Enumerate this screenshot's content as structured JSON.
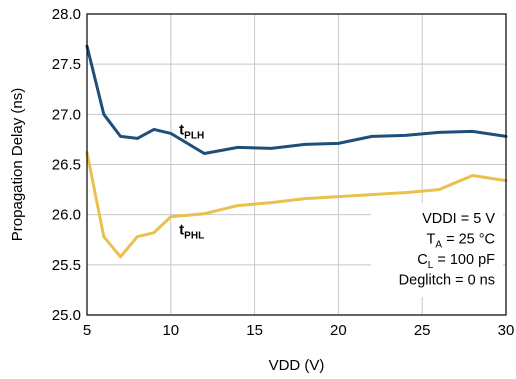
{
  "chart_data": {
    "type": "line",
    "title": "",
    "xlabel": "VDD (V)",
    "ylabel": "Propagation Delay (ns)",
    "xlim": [
      5,
      30
    ],
    "ylim": [
      25.0,
      28.0
    ],
    "x_ticks": [
      5,
      10,
      15,
      20,
      25,
      30
    ],
    "x_tick_labels": [
      "5",
      "10",
      "15",
      "20",
      "25",
      "30"
    ],
    "y_ticks": [
      25.0,
      25.5,
      26.0,
      26.5,
      27.0,
      27.5,
      28.0
    ],
    "y_tick_labels": [
      "25.0",
      "25.5",
      "26.0",
      "26.5",
      "27.0",
      "27.5",
      "28.0"
    ],
    "grid": true,
    "series": [
      {
        "name_main": "t",
        "name_sub": "PLH",
        "color": "#1f4e79",
        "label_at": [
          10.5,
          26.8
        ],
        "x": [
          5,
          6,
          7,
          8,
          9,
          10,
          12,
          14,
          16,
          18,
          20,
          22,
          24,
          26,
          28,
          30
        ],
        "values": [
          27.68,
          27.0,
          26.78,
          26.76,
          26.85,
          26.81,
          26.61,
          26.67,
          26.66,
          26.7,
          26.71,
          26.78,
          26.79,
          26.82,
          26.83,
          26.78
        ]
      },
      {
        "name_main": "t",
        "name_sub": "PHL",
        "color": "#e8c14f",
        "label_at": [
          10.5,
          25.8
        ],
        "x": [
          5,
          6,
          7,
          8,
          9,
          10,
          12,
          14,
          16,
          18,
          20,
          22,
          24,
          26,
          28,
          30
        ],
        "values": [
          26.62,
          25.78,
          25.58,
          25.78,
          25.82,
          25.98,
          26.01,
          26.09,
          26.12,
          26.16,
          26.18,
          26.2,
          26.22,
          26.25,
          26.39,
          26.34
        ]
      }
    ],
    "annotation": [
      {
        "main": "VDDI = 5 V",
        "sub": "",
        "rest": ""
      },
      {
        "main": "T",
        "sub": "A",
        "rest": " = 25 °C"
      },
      {
        "main": "C",
        "sub": "L",
        "rest": " = 100 pF"
      },
      {
        "main": "Deglitch = 0 ns",
        "sub": "",
        "rest": ""
      }
    ],
    "annotation_position": "bottom-right"
  }
}
